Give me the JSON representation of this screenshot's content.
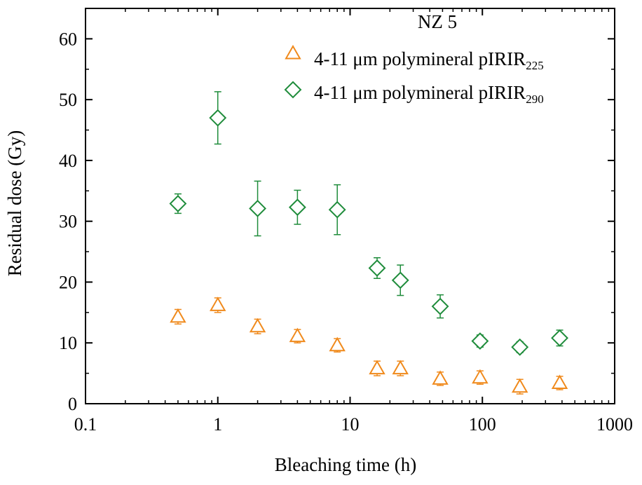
{
  "chart_data": {
    "type": "scatter",
    "title": "NZ 5",
    "xlabel": "Bleaching time (h)",
    "ylabel": "Residual dose (Gy)",
    "x_scale": "log",
    "xlim": [
      0.1,
      1000
    ],
    "ylim": [
      0,
      65
    ],
    "x_ticks": [
      0.1,
      1,
      10,
      100,
      1000
    ],
    "x_tick_labels": [
      "0.1",
      "1",
      "10",
      "100",
      "1000"
    ],
    "y_ticks": [
      0,
      10,
      20,
      30,
      40,
      50,
      60
    ],
    "y_tick_labels": [
      "0",
      "10",
      "20",
      "30",
      "40",
      "50",
      "60"
    ],
    "grid": false,
    "legend_position": "top-right",
    "series": [
      {
        "name_main": "4-11 μm polymineral pIRIR",
        "name_sub": "225",
        "marker": "triangle",
        "color": "#f08a1c",
        "x": [
          0.5,
          1,
          2,
          4,
          8,
          16,
          24,
          48,
          96,
          192,
          384
        ],
        "y": [
          14.3,
          16.2,
          12.7,
          11.1,
          9.6,
          5.8,
          5.8,
          4.1,
          4.3,
          2.8,
          3.4
        ],
        "err": [
          1.2,
          1.2,
          1.2,
          1.1,
          1.1,
          1.2,
          1.2,
          1.1,
          1.1,
          1.2,
          1.1
        ]
      },
      {
        "name_main": "4-11 μm polymineral pIRIR",
        "name_sub": "290",
        "marker": "diamond",
        "color": "#1f8c3b",
        "x": [
          0.5,
          1,
          2,
          4,
          8,
          16,
          24,
          48,
          96,
          192,
          384
        ],
        "y": [
          32.9,
          47.0,
          32.1,
          32.3,
          31.9,
          22.3,
          20.3,
          16.0,
          10.3,
          9.3,
          10.8
        ],
        "err": [
          1.6,
          4.3,
          4.5,
          2.8,
          4.1,
          1.7,
          2.5,
          1.9,
          1.0,
          0.9,
          1.3
        ]
      }
    ]
  }
}
